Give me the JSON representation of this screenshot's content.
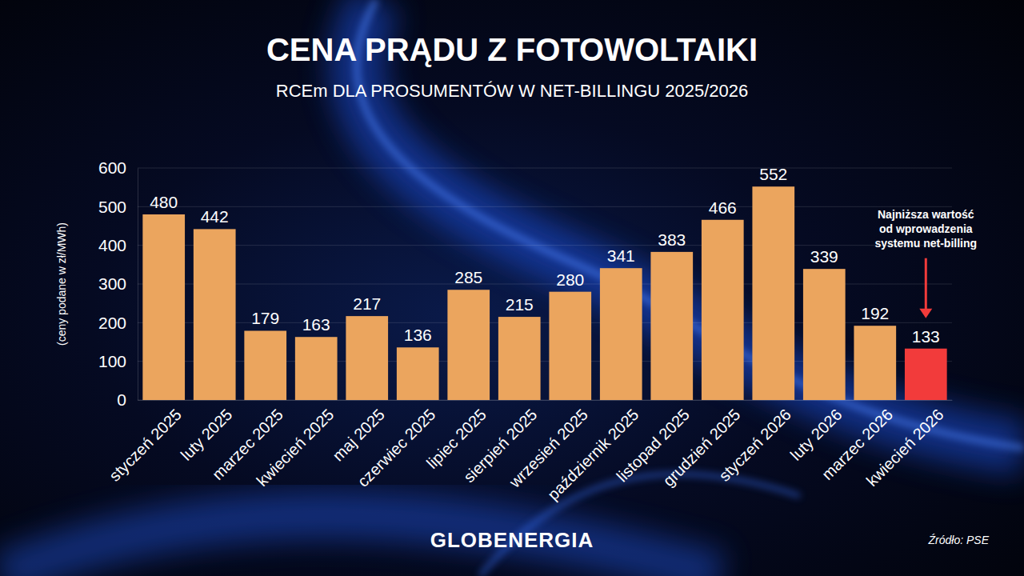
{
  "chart_data": {
    "type": "bar",
    "title": "CENA PRĄDU Z FOTOWOLTAIKI",
    "subtitle": "RCEm DLA PROSUMENTÓW W NET-BILLINGU 2025/2026",
    "y_label": "(ceny podane w zł/MWh)",
    "categories": [
      "styczeń 2025",
      "luty 2025",
      "marzec 2025",
      "kwiecień 2025",
      "maj 2025",
      "czerwiec 2025",
      "lipiec 2025",
      "sierpień 2025",
      "wrzesień 2025",
      "październik 2025",
      "listopad 2025",
      "grudzień 2025",
      "styczeń 2026",
      "luty 2026",
      "marzec 2026",
      "kwiecień 2026"
    ],
    "values": [
      480,
      442,
      179,
      163,
      217,
      136,
      285,
      215,
      280,
      341,
      383,
      466,
      552,
      339,
      192,
      133
    ],
    "colors": [
      "#eba55e",
      "#eba55e",
      "#eba55e",
      "#eba55e",
      "#eba55e",
      "#eba55e",
      "#eba55e",
      "#eba55e",
      "#eba55e",
      "#eba55e",
      "#eba55e",
      "#eba55e",
      "#eba55e",
      "#eba55e",
      "#eba55e",
      "#f23b3b"
    ],
    "ylim": [
      0,
      600
    ],
    "yticks": [
      0,
      100,
      200,
      300,
      400,
      500,
      600
    ],
    "grid": true,
    "data_labels": true,
    "annotations": [
      {
        "category": "kwiecień 2026",
        "text": [
          "Najniższa wartość",
          "od wprowadzenia",
          "systemu net-billing"
        ]
      }
    ],
    "brand": "GLOBENERGIA",
    "source": "Źródło: PSE"
  }
}
